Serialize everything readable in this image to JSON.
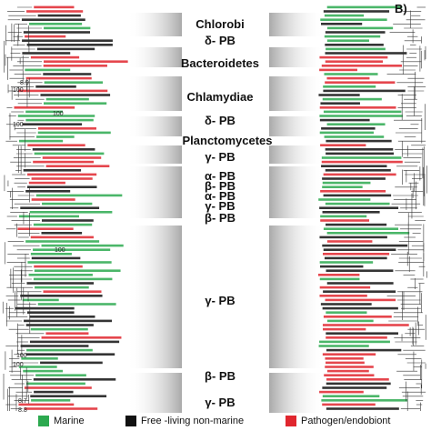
{
  "panel_label": "B)",
  "groups": [
    {
      "label": "Chlorobi",
      "top": 20
    },
    {
      "label": "δ- PB",
      "top": 38
    },
    {
      "label": "Bacteroidetes",
      "top": 63
    },
    {
      "label": "Chlamydiae",
      "top": 100
    },
    {
      "label": "δ- PB",
      "top": 126
    },
    {
      "label": "Planctomycetes",
      "top": 148
    },
    {
      "label": "γ- PB",
      "top": 166
    },
    {
      "label": "α- PB",
      "top": 187
    },
    {
      "label": "β- PB",
      "top": 198
    },
    {
      "label": "α- PB",
      "top": 209
    },
    {
      "label": "γ- PB",
      "top": 220
    },
    {
      "label": "β- PB",
      "top": 233
    },
    {
      "label": "γ- PB",
      "top": 324
    },
    {
      "label": "β- PB",
      "top": 407
    },
    {
      "label": "γ- PB",
      "top": 436
    }
  ],
  "bootstrap_labels": [
    "8.9",
    "100",
    "100",
    "100",
    "100",
    "100",
    "100",
    "8.7",
    "8.8"
  ],
  "legend": [
    {
      "label": "Marine",
      "color": "#2ca94f"
    },
    {
      "label": "Free -living non-marine",
      "color": "#111111"
    },
    {
      "label": "Pathogen/endobiont",
      "color": "#e0262e"
    }
  ],
  "colors": {
    "marine": "#2ca94f",
    "free_living": "#111111",
    "pathogen": "#e0262e",
    "band": "#b8b8b8"
  }
}
